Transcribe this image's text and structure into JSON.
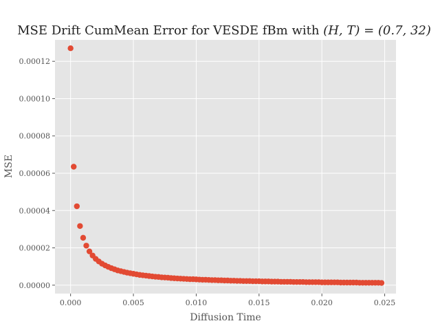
{
  "chart_data": {
    "type": "scatter",
    "title": "MSE Drift CumMean Error for VESDE fBm with (H, T) = (0.7, 32)",
    "title_parts": {
      "prefix": "MSE Drift CumMean Error for VESDE fBm with ",
      "math": "(H, T) = (0.7, 32)"
    },
    "xlabel": "Diffusion Time",
    "ylabel": "MSE",
    "xlim": [
      -0.00124,
      0.0259
    ],
    "ylim": [
      -4.5e-06,
      0.0001315
    ],
    "x_ticks": [
      0.0,
      0.005,
      0.01,
      0.015,
      0.02,
      0.025
    ],
    "x_tick_labels": [
      "0.000",
      "0.005",
      "0.010",
      "0.015",
      "0.020",
      "0.025"
    ],
    "y_ticks": [
      0.0,
      2e-05,
      4e-05,
      6e-05,
      8e-05,
      0.0001,
      0.00012
    ],
    "y_tick_labels": [
      "0.00000",
      "0.00002",
      "0.00004",
      "0.00006",
      "0.00008",
      "0.00010",
      "0.00012"
    ],
    "grid": true,
    "legend": "none",
    "style": "ggplot",
    "colors": {
      "background": "#E5E5E5",
      "grid": "#FFFFFF",
      "marker": "#E24A33"
    },
    "series": [
      {
        "x": [
          0.0,
          0.00025,
          0.0005,
          0.00075,
          0.001,
          0.00125,
          0.0015,
          0.00175,
          0.002,
          0.00225,
          0.0025,
          0.00275,
          0.003,
          0.00325,
          0.0035,
          0.00375,
          0.004,
          0.00425,
          0.0045,
          0.00475,
          0.005,
          0.00525,
          0.0055,
          0.00575,
          0.006,
          0.00625,
          0.0065,
          0.00675,
          0.007,
          0.00725,
          0.0075,
          0.00775,
          0.008,
          0.00825,
          0.0085,
          0.00875,
          0.009,
          0.00925,
          0.0095,
          0.00975,
          0.01,
          0.01025,
          0.0105,
          0.01075,
          0.011,
          0.01125,
          0.0115,
          0.01175,
          0.012,
          0.01225,
          0.0125,
          0.01275,
          0.013,
          0.01325,
          0.0135,
          0.01375,
          0.014,
          0.01425,
          0.0145,
          0.01475,
          0.015,
          0.01525,
          0.0155,
          0.01575,
          0.016,
          0.01625,
          0.0165,
          0.01675,
          0.017,
          0.01725,
          0.0175,
          0.01775,
          0.018,
          0.01825,
          0.0185,
          0.01875,
          0.019,
          0.01925,
          0.0195,
          0.01975,
          0.02,
          0.02025,
          0.0205,
          0.02075,
          0.021,
          0.02125,
          0.0215,
          0.02175,
          0.022,
          0.02225,
          0.0225,
          0.02275,
          0.023,
          0.02325,
          0.0235,
          0.02375,
          0.024,
          0.02425,
          0.0245,
          0.02475
        ],
        "y": [
          0.000127,
          6.35e-05,
          4.23e-05,
          3.17e-05,
          2.54e-05,
          2.12e-05,
          1.81e-05,
          1.59e-05,
          1.41e-05,
          1.27e-05,
          1.15e-05,
          1.06e-05,
          9.8e-06,
          9.1e-06,
          8.5e-06,
          7.9e-06,
          7.5e-06,
          7.1e-06,
          6.7e-06,
          6.4e-06,
          6.1e-06,
          5.8e-06,
          5.5e-06,
          5.3e-06,
          5.1e-06,
          4.9e-06,
          4.7e-06,
          4.5e-06,
          4.4e-06,
          4.2e-06,
          4.1e-06,
          4e-06,
          3.8e-06,
          3.7e-06,
          3.6e-06,
          3.5e-06,
          3.4e-06,
          3.3e-06,
          3.2e-06,
          3.2e-06,
          3.1e-06,
          3e-06,
          2.9e-06,
          2.9e-06,
          2.8e-06,
          2.7e-06,
          2.7e-06,
          2.6e-06,
          2.6e-06,
          2.5e-06,
          2.5e-06,
          2.4e-06,
          2.4e-06,
          2.3e-06,
          2.3e-06,
          2.2e-06,
          2.2e-06,
          2.2e-06,
          2.1e-06,
          2.1e-06,
          2.1e-06,
          2e-06,
          2e-06,
          2e-06,
          1.9e-06,
          1.9e-06,
          1.9e-06,
          1.8e-06,
          1.8e-06,
          1.8e-06,
          1.8e-06,
          1.7e-06,
          1.7e-06,
          1.7e-06,
          1.7e-06,
          1.6e-06,
          1.6e-06,
          1.6e-06,
          1.6e-06,
          1.6e-06,
          1.5e-06,
          1.5e-06,
          1.5e-06,
          1.5e-06,
          1.5e-06,
          1.5e-06,
          1.4e-06,
          1.4e-06,
          1.4e-06,
          1.4e-06,
          1.4e-06,
          1.4e-06,
          1.3e-06,
          1.3e-06,
          1.3e-06,
          1.3e-06,
          1.3e-06,
          1.3e-06,
          1.3e-06,
          1.2e-06
        ]
      }
    ]
  }
}
